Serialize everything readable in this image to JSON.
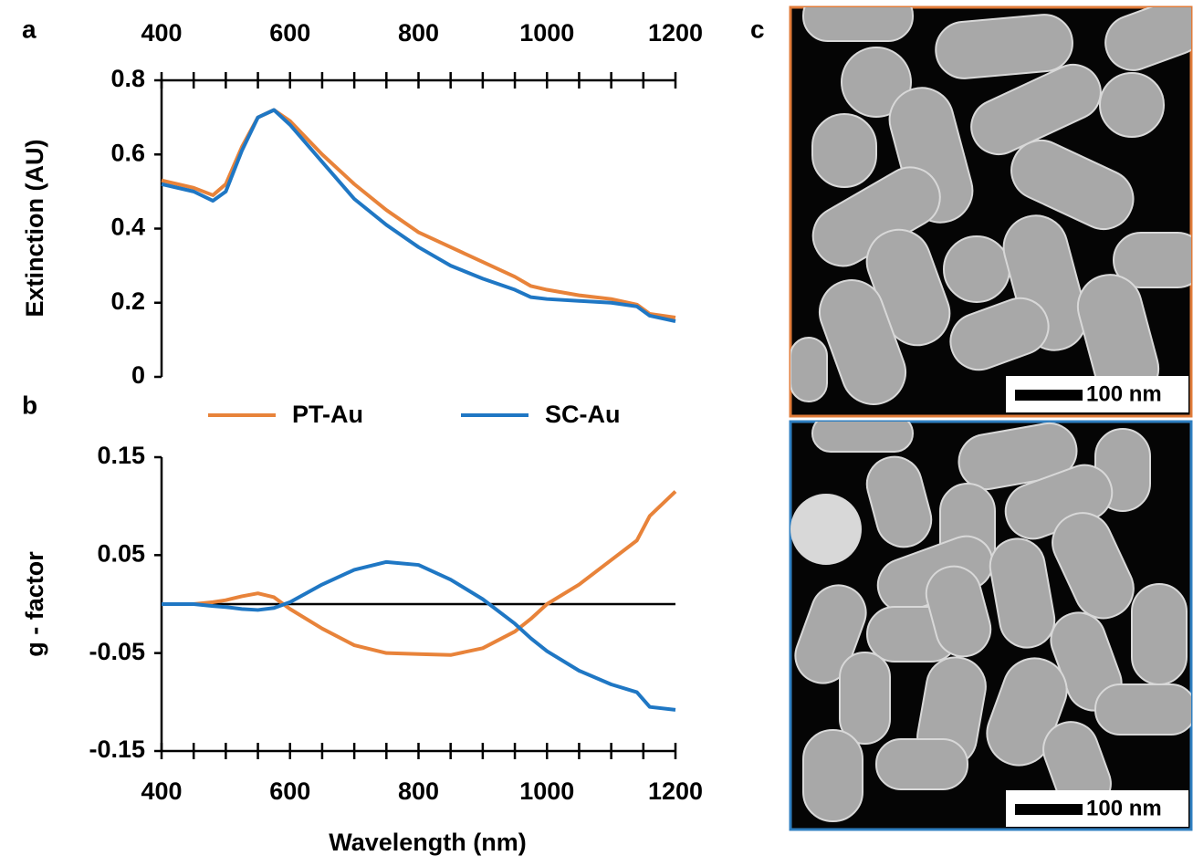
{
  "chart_data": [
    {
      "type": "line",
      "panel_label": "a",
      "ylabel": "Extinction (AU)",
      "x": [
        400,
        450,
        480,
        500,
        525,
        550,
        575,
        600,
        650,
        700,
        750,
        800,
        850,
        900,
        950,
        975,
        1000,
        1050,
        1100,
        1140,
        1160,
        1200
      ],
      "series": [
        {
          "color": "#e8833a",
          "values": [
            0.53,
            0.51,
            0.49,
            0.52,
            0.62,
            0.7,
            0.72,
            0.69,
            0.6,
            0.52,
            0.45,
            0.39,
            0.35,
            0.31,
            0.27,
            0.245,
            0.235,
            0.22,
            0.21,
            0.195,
            0.17,
            0.16
          ]
        },
        {
          "color": "#1f77c4",
          "values": [
            0.52,
            0.5,
            0.475,
            0.5,
            0.61,
            0.7,
            0.72,
            0.68,
            0.58,
            0.48,
            0.41,
            0.35,
            0.3,
            0.265,
            0.235,
            0.215,
            0.21,
            0.205,
            0.2,
            0.19,
            0.165,
            0.15
          ]
        }
      ],
      "xlim": [
        400,
        1200
      ],
      "xticks": [
        400,
        600,
        800,
        1000,
        1200
      ],
      "ylim": [
        0,
        0.8
      ],
      "yticks": [
        0,
        0.2,
        0.4,
        0.6,
        0.8
      ]
    },
    {
      "type": "line",
      "panel_label": "b",
      "xlabel": "Wavelength (nm)",
      "ylabel": "g - factor",
      "x": [
        400,
        450,
        480,
        500,
        525,
        550,
        575,
        600,
        650,
        700,
        750,
        800,
        850,
        900,
        950,
        975,
        1000,
        1050,
        1100,
        1140,
        1160,
        1200
      ],
      "series": [
        {
          "name": "PT-Au",
          "color": "#e8833a",
          "values": [
            0,
            0,
            0.002,
            0.004,
            0.008,
            0.011,
            0.007,
            -0.005,
            -0.025,
            -0.042,
            -0.05,
            -0.051,
            -0.052,
            -0.045,
            -0.028,
            -0.015,
            0,
            0.02,
            0.045,
            0.065,
            0.09,
            0.115
          ]
        },
        {
          "name": "SC-Au",
          "color": "#1f77c4",
          "values": [
            0,
            0,
            -0.002,
            -0.003,
            -0.005,
            -0.006,
            -0.004,
            0.002,
            0.02,
            0.035,
            0.043,
            0.04,
            0.025,
            0.005,
            -0.02,
            -0.035,
            -0.048,
            -0.068,
            -0.082,
            -0.09,
            -0.105,
            -0.108
          ]
        }
      ],
      "hlines": [
        0
      ],
      "xlim": [
        400,
        1200
      ],
      "xticks": [
        400,
        600,
        800,
        1000,
        1200
      ],
      "ylim": [
        -0.15,
        0.15
      ],
      "yticks": [
        -0.15,
        -0.05,
        0.05,
        0.15
      ],
      "legend": "top"
    }
  ],
  "panel_label": "c",
  "images": [
    {
      "scale_bar": "100 nm",
      "border_color": "#e07b39"
    },
    {
      "scale_bar": "100 nm",
      "border_color": "#2f7fc1"
    }
  ]
}
